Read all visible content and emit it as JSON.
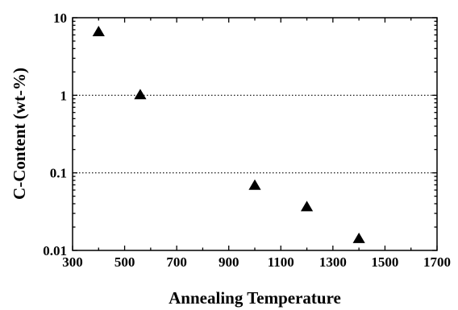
{
  "chart_data": {
    "type": "scatter",
    "title": "",
    "xlabel": "Annealing Temperature",
    "ylabel": "C-Content (wt-%)",
    "xlim": [
      300,
      1700
    ],
    "ylim": [
      0.01,
      10
    ],
    "yscale": "log",
    "x_ticks": [
      "300",
      "500",
      "700",
      "900",
      "1100",
      "1300",
      "1500",
      "1700"
    ],
    "y_ticks": [
      "0.01",
      "0.1",
      "1",
      "10"
    ],
    "grid": "horizontal dotted at y = 0.1 and 1",
    "marker": "filled-triangle",
    "marker_color": "#000000",
    "series": [
      {
        "x": [
          400,
          560,
          1000,
          1200,
          1400
        ],
        "y": [
          6.5,
          1.0,
          0.068,
          0.036,
          0.014
        ]
      }
    ]
  }
}
